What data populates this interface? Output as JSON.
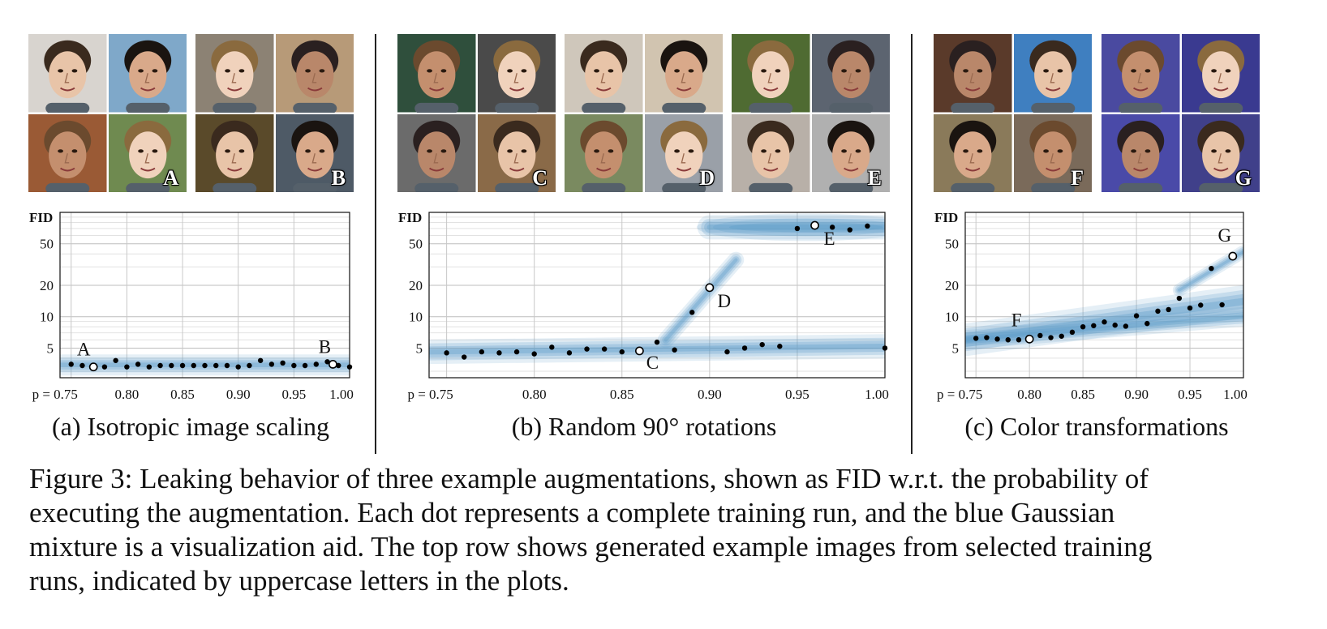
{
  "figure": {
    "caption_lines": [
      "Figure 3: Leaking behavior of three example augmentations, shown as FID w.r.t. the probability of",
      "executing the augmentation. Each dot represents a complete training run, and the blue Gaussian",
      "mixture is a visualization aid. The top row shows generated example images from selected training",
      "runs, indicated by uppercase letters in the plots."
    ]
  },
  "panels": [
    {
      "id": "a",
      "subcaption": "(a) Isotropic image scaling",
      "grids": [
        {
          "letter": "A",
          "faces": [
            "#d8d4cf",
            "#7fa8c9",
            "#9a5a35",
            "#6f8a50"
          ]
        },
        {
          "letter": "B",
          "faces": [
            "#8c8274",
            "#b79a78",
            "#5a4a2a",
            "#4e5a66"
          ]
        }
      ]
    },
    {
      "id": "b",
      "subcaption": "(b) Random 90° rotations",
      "grids": [
        {
          "letter": "C",
          "faces": [
            "#2f4f3c",
            "#4a4a4a",
            "#6b6b6b",
            "#8a6a48"
          ]
        },
        {
          "letter": "D",
          "faces": [
            "#cfc7bb",
            "#d1c4b0",
            "#7a8a60",
            "#9aa0a8"
          ]
        },
        {
          "letter": "E",
          "faces": [
            "#4f6b32",
            "#5c6470",
            "#b8b0a8",
            "#b0b0b0"
          ]
        }
      ]
    },
    {
      "id": "c",
      "subcaption": "(c) Color transformations",
      "grids": [
        {
          "letter": "F",
          "faces": [
            "#5a3a2a",
            "#3f7fc0",
            "#8a7a5a",
            "#7a6a5a"
          ]
        },
        {
          "letter": "G",
          "faces": [
            "#4a4aa0",
            "#3a3a90",
            "#4a4aa8",
            "#40408a"
          ]
        }
      ]
    }
  ],
  "chart_data": [
    {
      "type": "scatter",
      "title": "(a) Isotropic image scaling",
      "ylabel": "FID",
      "xlabel": "p",
      "y_scale": "log",
      "ylim": [
        2.6,
        100
      ],
      "xlim": [
        0.74,
        1.0
      ],
      "x_ticks": [
        "p = 0.75",
        "0.80",
        "0.85",
        "0.90",
        "0.95",
        "1.00"
      ],
      "y_ticks": [
        "5",
        "10",
        "20",
        "50"
      ],
      "series": [
        {
          "x": [
            0.75,
            0.76,
            0.78,
            0.79,
            0.8,
            0.81,
            0.82,
            0.83,
            0.84,
            0.85,
            0.86,
            0.87,
            0.88,
            0.89,
            0.9,
            0.91,
            0.92,
            0.93,
            0.94,
            0.95,
            0.96,
            0.97,
            0.98,
            0.99,
            1.0
          ],
          "y": [
            3.5,
            3.4,
            3.3,
            3.8,
            3.3,
            3.5,
            3.3,
            3.4,
            3.4,
            3.4,
            3.4,
            3.4,
            3.4,
            3.4,
            3.3,
            3.4,
            3.8,
            3.5,
            3.6,
            3.4,
            3.4,
            3.5,
            3.7,
            3.4,
            3.3
          ]
        }
      ],
      "highlighted": [
        {
          "label": "A",
          "x": 0.77,
          "y": 3.3
        },
        {
          "label": "B",
          "x": 0.985,
          "y": 3.5
        }
      ],
      "grid": true
    },
    {
      "type": "scatter",
      "title": "(b) Random 90° rotations",
      "ylabel": "FID",
      "xlabel": "p",
      "y_scale": "log",
      "ylim": [
        2.6,
        100
      ],
      "xlim": [
        0.74,
        1.0
      ],
      "x_ticks": [
        "p = 0.75",
        "0.80",
        "0.85",
        "0.90",
        "0.95",
        "1.00"
      ],
      "y_ticks": [
        "5",
        "10",
        "20",
        "50"
      ],
      "series": [
        {
          "x": [
            0.75,
            0.76,
            0.77,
            0.78,
            0.79,
            0.8,
            0.81,
            0.82,
            0.83,
            0.84,
            0.85,
            0.87,
            0.88,
            0.89,
            0.91,
            0.92,
            0.93,
            0.94,
            0.95,
            0.97,
            0.98,
            0.99,
            1.0
          ],
          "y": [
            4.5,
            4.1,
            4.6,
            4.5,
            4.6,
            4.4,
            5.1,
            4.5,
            4.9,
            4.9,
            4.6,
            5.7,
            4.8,
            11.0,
            4.6,
            5.0,
            5.4,
            5.2,
            70,
            72,
            68,
            74,
            5.0
          ]
        }
      ],
      "highlighted": [
        {
          "label": "C",
          "x": 0.86,
          "y": 4.7
        },
        {
          "label": "D",
          "x": 0.9,
          "y": 19
        },
        {
          "label": "E",
          "x": 0.96,
          "y": 75
        }
      ],
      "grid": true
    },
    {
      "type": "scatter",
      "title": "(c) Color transformations",
      "ylabel": "FID",
      "xlabel": "p",
      "y_scale": "log",
      "ylim": [
        2.6,
        100
      ],
      "xlim": [
        0.74,
        1.0
      ],
      "x_ticks": [
        "p = 0.75",
        "0.80",
        "0.85",
        "0.90",
        "0.95",
        "1.00"
      ],
      "y_ticks": [
        "5",
        "10",
        "20",
        "50"
      ],
      "series": [
        {
          "x": [
            0.75,
            0.76,
            0.77,
            0.78,
            0.79,
            0.81,
            0.82,
            0.83,
            0.84,
            0.85,
            0.86,
            0.87,
            0.88,
            0.89,
            0.9,
            0.91,
            0.92,
            0.93,
            0.94,
            0.95,
            0.96,
            0.97,
            0.98
          ],
          "y": [
            6.2,
            6.3,
            6.1,
            6.0,
            6.0,
            6.6,
            6.3,
            6.5,
            7.1,
            8.0,
            8.2,
            8.9,
            8.3,
            8.1,
            10.2,
            8.6,
            11.3,
            11.7,
            15.0,
            12.1,
            12.9,
            29.0,
            13.0
          ]
        }
      ],
      "highlighted": [
        {
          "label": "F",
          "x": 0.8,
          "y": 6.1
        },
        {
          "label": "G",
          "x": 0.99,
          "y": 38
        }
      ],
      "grid": true
    }
  ]
}
